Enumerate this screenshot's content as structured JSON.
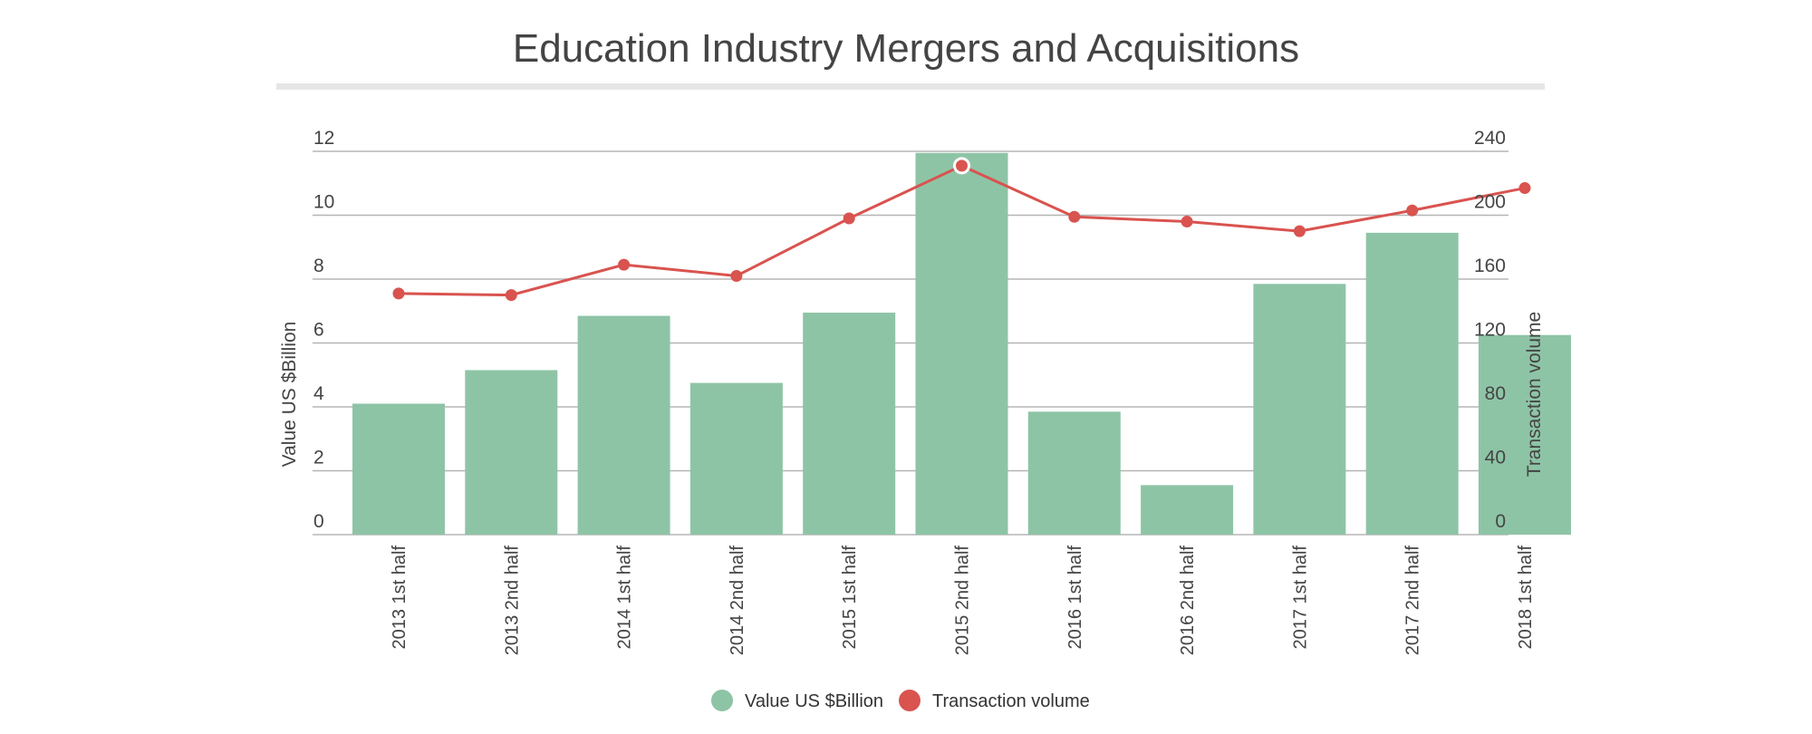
{
  "chart_data": {
    "type": "bar",
    "title": "Education Industry Mergers and Acquisitions",
    "categories": [
      "2013 1st half",
      "2013 2nd half",
      "2014 1st half",
      "2014 2nd half",
      "2015 1st half",
      "2015 2nd half",
      "2016 1st half",
      "2016 2nd half",
      "2017 1st half",
      "2017 2nd half",
      "2018 1st half"
    ],
    "series": [
      {
        "name": "Value US $Billion",
        "type": "bar",
        "axis": "left",
        "color": "#8ec4a6",
        "values": [
          4.1,
          5.15,
          6.85,
          4.75,
          6.95,
          11.95,
          3.85,
          1.55,
          7.85,
          9.45,
          6.25
        ]
      },
      {
        "name": "Transaction volume",
        "type": "line",
        "axis": "right",
        "color": "#d9534f",
        "values": [
          151,
          150,
          169,
          162,
          198,
          231,
          199,
          196,
          190,
          203,
          217
        ]
      }
    ],
    "ylabel": "Value US $Billion",
    "ylabel_right": "Transaction volume",
    "ylim": [
      0,
      12
    ],
    "ylim_right": [
      0,
      240
    ],
    "yticks": [
      "0",
      "2",
      "4",
      "6",
      "8",
      "10",
      "12"
    ],
    "yticks_right": [
      "0",
      "40",
      "80",
      "120",
      "160",
      "200",
      "240"
    ],
    "grid": true,
    "legend_position": "bottom-center"
  }
}
